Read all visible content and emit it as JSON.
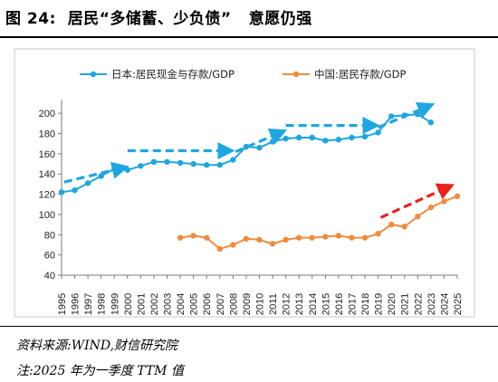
{
  "header": {
    "title": "图 24:  居民“多储蓄、少负债”   意愿仍强"
  },
  "footer": {
    "source": "资料来源:WIND,财信研究院",
    "note": "注:2025 年为一季度 TTM 值"
  },
  "chart_data": {
    "type": "line",
    "title": "",
    "xlabel": "",
    "ylabel": "",
    "ylim": [
      40,
      210
    ],
    "yticks": [
      40,
      60,
      80,
      100,
      120,
      140,
      160,
      180,
      200
    ],
    "x": [
      1995,
      1996,
      1997,
      1998,
      1999,
      2000,
      2001,
      2002,
      2003,
      2004,
      2005,
      2006,
      2007,
      2008,
      2009,
      2010,
      2011,
      2012,
      2013,
      2014,
      2015,
      2016,
      2017,
      2018,
      2019,
      2020,
      2021,
      2022,
      2023,
      2024,
      2025
    ],
    "xtick_labels": [
      "1995",
      "1997",
      "1999",
      "2001",
      "2003",
      "2005",
      "2007",
      "2009",
      "2011",
      "2013",
      "2015",
      "2017",
      "2019",
      "2021",
      "2023",
      "2025",
      "1996",
      "1998",
      "2000",
      "2002",
      "2004",
      "2006",
      "2008",
      "2010",
      "2012",
      "2014",
      "2016",
      "2018",
      "2020",
      "2022",
      "2024"
    ],
    "grid": false,
    "legend_position": "top",
    "series": [
      {
        "name": "日本:居民现金与存款/GDP",
        "color": "#1fa6e0",
        "x": [
          1995,
          1996,
          1997,
          1998,
          1999,
          2000,
          2001,
          2002,
          2003,
          2004,
          2005,
          2006,
          2007,
          2008,
          2009,
          2010,
          2011,
          2012,
          2013,
          2014,
          2015,
          2016,
          2017,
          2018,
          2019,
          2020,
          2021,
          2022,
          2023
        ],
        "values": [
          122,
          124,
          131,
          138,
          145,
          144,
          148,
          152,
          152,
          151,
          150,
          149,
          149,
          154,
          167,
          166,
          172,
          175,
          176,
          176,
          173,
          174,
          176,
          177,
          181,
          197,
          198,
          199,
          191
        ]
      },
      {
        "name": "中国:居民存款/GDP",
        "color": "#f08c3c",
        "x": [
          2004,
          2005,
          2006,
          2007,
          2008,
          2009,
          2010,
          2011,
          2012,
          2013,
          2014,
          2015,
          2016,
          2017,
          2018,
          2019,
          2020,
          2021,
          2022,
          2023,
          2024,
          2025
        ],
        "values": [
          77,
          79,
          77,
          66,
          70,
          76,
          75,
          71,
          75,
          77,
          77,
          78,
          79,
          77,
          77,
          81,
          90,
          88,
          98,
          107,
          113,
          118
        ]
      }
    ],
    "annotations": [
      {
        "type": "arrow",
        "color": "#1fa6e0",
        "dashed": true,
        "from": [
          1995.2,
          132
        ],
        "to": [
          1999.6,
          146
        ]
      },
      {
        "type": "arrow",
        "color": "#1fa6e0",
        "dashed": true,
        "from": [
          2000.0,
          163
        ],
        "to": [
          2007.6,
          163
        ]
      },
      {
        "type": "arrow",
        "color": "#1fa6e0",
        "dashed": true,
        "from": [
          2008.2,
          162
        ],
        "to": [
          2011.6,
          181
        ]
      },
      {
        "type": "arrow",
        "color": "#1fa6e0",
        "dashed": true,
        "from": [
          2012.0,
          188
        ],
        "to": [
          2018.6,
          188
        ]
      },
      {
        "type": "arrow",
        "color": "#1fa6e0",
        "dashed": true,
        "from": [
          2019.0,
          186
        ],
        "to": [
          2022.8,
          207
        ]
      },
      {
        "type": "arrow",
        "color": "#e8231e",
        "dashed": true,
        "from": [
          2019.2,
          97
        ],
        "to": [
          2024.3,
          127
        ]
      }
    ]
  }
}
